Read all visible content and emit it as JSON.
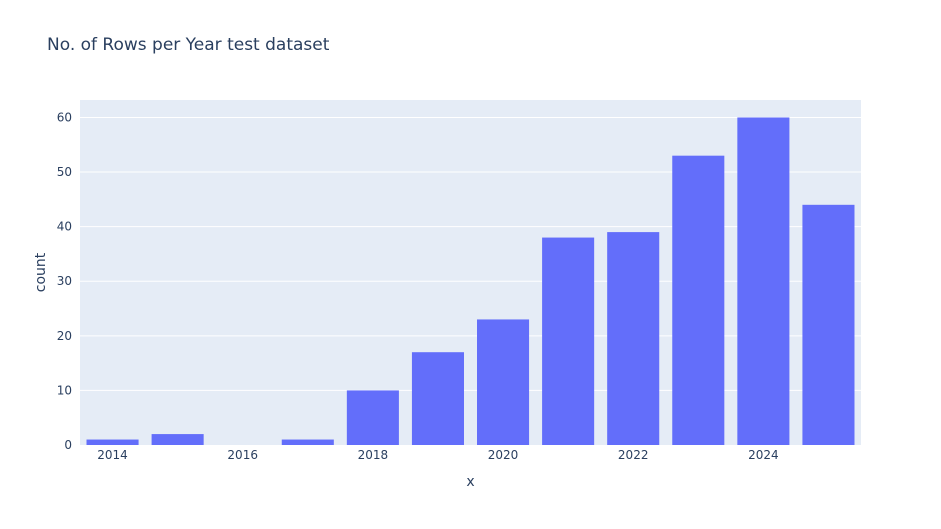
{
  "chart_data": {
    "type": "bar",
    "title": "No. of Rows per Year test dataset",
    "xlabel": "x",
    "ylabel": "count",
    "x": [
      2014,
      2015,
      2016,
      2017,
      2018,
      2019,
      2020,
      2021,
      2022,
      2023,
      2024,
      2025
    ],
    "values": [
      1,
      2,
      0,
      1,
      10,
      17,
      23,
      38,
      39,
      53,
      60,
      44
    ],
    "xlim": [
      2013.5,
      2025.5
    ],
    "ylim": [
      0,
      63.2
    ],
    "x_ticks": [
      2014,
      2016,
      2018,
      2020,
      2022,
      2024
    ],
    "y_ticks": [
      0,
      10,
      20,
      30,
      40,
      50,
      60
    ],
    "grid": true,
    "colors": {
      "bar": "#636efa",
      "plot_bg": "#e5ecf6",
      "grid": "#ffffff",
      "text": "#2a3f5f"
    }
  }
}
